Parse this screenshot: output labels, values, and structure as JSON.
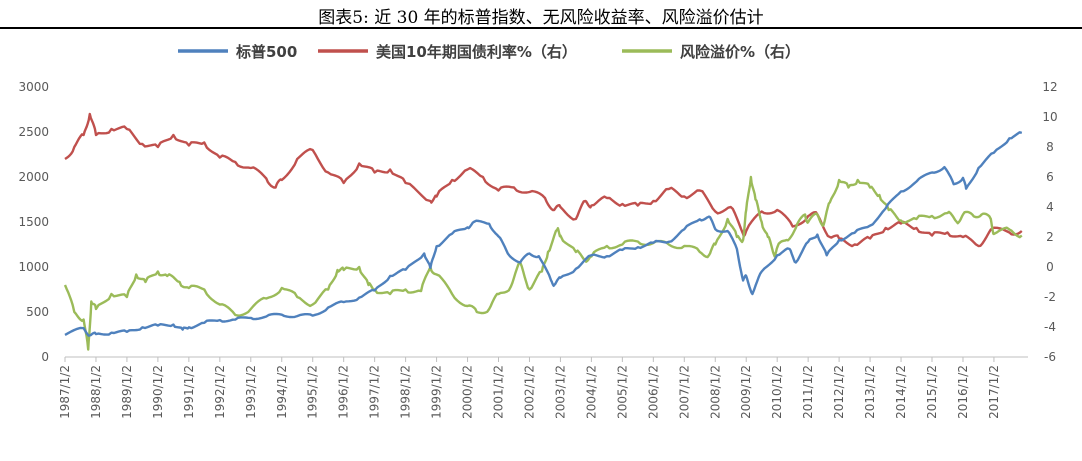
{
  "chart_data": {
    "type": "line",
    "title": "图表5:  近 30 年的标普指数、无风险收益率、风险溢价估计",
    "x_ticks": [
      "1987/1/2",
      "1988/1/2",
      "1989/1/2",
      "1990/1/2",
      "1991/1/2",
      "1992/1/2",
      "1993/1/2",
      "1994/1/2",
      "1995/1/2",
      "1996/1/2",
      "1997/1/2",
      "1998/1/2",
      "1999/1/2",
      "2000/1/2",
      "2001/1/2",
      "2002/1/2",
      "2003/1/2",
      "2004/1/2",
      "2005/1/2",
      "2006/1/2",
      "2007/1/2",
      "2008/1/2",
      "2009/1/2",
      "2010/1/2",
      "2011/1/2",
      "2012/1/2",
      "2013/1/2",
      "2014/1/2",
      "2015/1/2",
      "2016/1/2",
      "2017/1/2"
    ],
    "x_range": [
      1987.0,
      2018.1
    ],
    "y_left": {
      "ylim": [
        0,
        3000
      ],
      "ticks": [
        0,
        500,
        1000,
        1500,
        2000,
        2500,
        3000
      ]
    },
    "y_right": {
      "ylim": [
        -6,
        12
      ],
      "ticks": [
        -6,
        -4,
        -2,
        0,
        2,
        4,
        6,
        8,
        10,
        12
      ]
    },
    "legend_position": "top",
    "gridlines": false,
    "series": [
      {
        "name": "标普500",
        "axis": "left",
        "color": "#4F81BD",
        "points": [
          [
            1987.0,
            245
          ],
          [
            1987.6,
            320
          ],
          [
            1987.8,
            240
          ],
          [
            1988.0,
            255
          ],
          [
            1988.5,
            270
          ],
          [
            1989.0,
            280
          ],
          [
            1989.5,
            330
          ],
          [
            1990.0,
            350
          ],
          [
            1990.5,
            360
          ],
          [
            1990.8,
            305
          ],
          [
            1991.0,
            330
          ],
          [
            1991.5,
            380
          ],
          [
            1992.0,
            410
          ],
          [
            1992.5,
            415
          ],
          [
            1993.0,
            435
          ],
          [
            1993.5,
            450
          ],
          [
            1994.0,
            470
          ],
          [
            1994.5,
            455
          ],
          [
            1995.0,
            460
          ],
          [
            1995.5,
            550
          ],
          [
            1996.0,
            610
          ],
          [
            1996.5,
            660
          ],
          [
            1997.0,
            740
          ],
          [
            1997.5,
            900
          ],
          [
            1998.0,
            970
          ],
          [
            1998.6,
            1150
          ],
          [
            1998.8,
            990
          ],
          [
            1999.0,
            1230
          ],
          [
            1999.5,
            1370
          ],
          [
            2000.0,
            1440
          ],
          [
            2000.2,
            1500
          ],
          [
            2000.7,
            1480
          ],
          [
            2001.0,
            1340
          ],
          [
            2001.3,
            1150
          ],
          [
            2001.7,
            1050
          ],
          [
            2002.0,
            1150
          ],
          [
            2002.3,
            1120
          ],
          [
            2002.7,
            850
          ],
          [
            2002.8,
            800
          ],
          [
            2003.0,
            880
          ],
          [
            2003.5,
            980
          ],
          [
            2004.0,
            1130
          ],
          [
            2004.5,
            1120
          ],
          [
            2005.0,
            1190
          ],
          [
            2005.5,
            1220
          ],
          [
            2006.0,
            1270
          ],
          [
            2006.5,
            1280
          ],
          [
            2007.0,
            1420
          ],
          [
            2007.5,
            1530
          ],
          [
            2007.8,
            1560
          ],
          [
            2008.0,
            1420
          ],
          [
            2008.4,
            1400
          ],
          [
            2008.7,
            1200
          ],
          [
            2008.9,
            850
          ],
          [
            2009.0,
            900
          ],
          [
            2009.2,
            700
          ],
          [
            2009.5,
            950
          ],
          [
            2010.0,
            1130
          ],
          [
            2010.4,
            1200
          ],
          [
            2010.6,
            1050
          ],
          [
            2011.0,
            1280
          ],
          [
            2011.3,
            1360
          ],
          [
            2011.6,
            1130
          ],
          [
            2012.0,
            1300
          ],
          [
            2012.5,
            1380
          ],
          [
            2013.0,
            1460
          ],
          [
            2013.5,
            1650
          ],
          [
            2014.0,
            1840
          ],
          [
            2014.5,
            1950
          ],
          [
            2015.0,
            2050
          ],
          [
            2015.4,
            2110
          ],
          [
            2015.7,
            1920
          ],
          [
            2016.0,
            1990
          ],
          [
            2016.1,
            1870
          ],
          [
            2016.5,
            2100
          ],
          [
            2017.0,
            2270
          ],
          [
            2017.5,
            2430
          ],
          [
            2017.9,
            2490
          ]
        ]
      },
      {
        "name": "美国10年期国债利率%（右）",
        "axis": "right",
        "color": "#C0504D",
        "points": [
          [
            1987.0,
            7.2
          ],
          [
            1987.3,
            8.0
          ],
          [
            1987.6,
            8.8
          ],
          [
            1987.8,
            10.2
          ],
          [
            1988.0,
            8.8
          ],
          [
            1988.5,
            9.2
          ],
          [
            1989.0,
            9.2
          ],
          [
            1989.5,
            8.2
          ],
          [
            1990.0,
            8.0
          ],
          [
            1990.5,
            8.8
          ],
          [
            1991.0,
            8.1
          ],
          [
            1991.5,
            8.3
          ],
          [
            1992.0,
            7.3
          ],
          [
            1992.5,
            7.0
          ],
          [
            1993.0,
            6.6
          ],
          [
            1993.5,
            5.9
          ],
          [
            1993.8,
            5.3
          ],
          [
            1994.0,
            5.8
          ],
          [
            1994.5,
            7.2
          ],
          [
            1995.0,
            7.8
          ],
          [
            1995.5,
            6.3
          ],
          [
            1996.0,
            5.6
          ],
          [
            1996.5,
            6.9
          ],
          [
            1997.0,
            6.3
          ],
          [
            1997.5,
            6.5
          ],
          [
            1998.0,
            5.6
          ],
          [
            1998.8,
            4.4
          ],
          [
            1999.0,
            4.7
          ],
          [
            1999.5,
            5.8
          ],
          [
            2000.0,
            6.5
          ],
          [
            2000.5,
            6.0
          ],
          [
            2001.0,
            5.1
          ],
          [
            2001.5,
            5.3
          ],
          [
            2002.0,
            5.0
          ],
          [
            2002.5,
            4.6
          ],
          [
            2002.8,
            3.8
          ],
          [
            2003.0,
            4.0
          ],
          [
            2003.5,
            3.2
          ],
          [
            2003.8,
            4.4
          ],
          [
            2004.0,
            4.1
          ],
          [
            2004.5,
            4.6
          ],
          [
            2005.0,
            4.2
          ],
          [
            2005.5,
            4.1
          ],
          [
            2006.0,
            4.4
          ],
          [
            2006.5,
            5.2
          ],
          [
            2007.0,
            4.7
          ],
          [
            2007.5,
            5.1
          ],
          [
            2008.0,
            3.7
          ],
          [
            2008.5,
            4.0
          ],
          [
            2008.9,
            2.2
          ],
          [
            2009.0,
            2.4
          ],
          [
            2009.5,
            3.7
          ],
          [
            2010.0,
            3.8
          ],
          [
            2010.5,
            2.7
          ],
          [
            2011.0,
            3.4
          ],
          [
            2011.3,
            3.5
          ],
          [
            2011.7,
            2.0
          ],
          [
            2012.0,
            1.9
          ],
          [
            2012.5,
            1.5
          ],
          [
            2013.0,
            1.9
          ],
          [
            2013.5,
            2.6
          ],
          [
            2014.0,
            2.9
          ],
          [
            2014.5,
            2.6
          ],
          [
            2015.0,
            2.1
          ],
          [
            2015.5,
            2.3
          ],
          [
            2016.0,
            2.0
          ],
          [
            2016.5,
            1.4
          ],
          [
            2016.9,
            2.5
          ],
          [
            2017.5,
            2.3
          ],
          [
            2017.9,
            2.4
          ]
        ]
      },
      {
        "name": "风险溢价%（右）",
        "axis": "right",
        "color": "#9BBB59",
        "points": [
          [
            1987.0,
            -1.2
          ],
          [
            1987.3,
            -3.0
          ],
          [
            1987.6,
            -3.5
          ],
          [
            1987.75,
            -5.5
          ],
          [
            1987.85,
            -2.3
          ],
          [
            1988.0,
            -2.8
          ],
          [
            1988.5,
            -1.8
          ],
          [
            1989.0,
            -2.0
          ],
          [
            1989.3,
            -0.5
          ],
          [
            1989.6,
            -1.0
          ],
          [
            1990.0,
            -0.3
          ],
          [
            1990.3,
            -0.6
          ],
          [
            1990.7,
            -1.0
          ],
          [
            1991.0,
            -1.4
          ],
          [
            1991.5,
            -1.5
          ],
          [
            1992.0,
            -2.5
          ],
          [
            1992.5,
            -3.2
          ],
          [
            1993.0,
            -2.8
          ],
          [
            1993.5,
            -2.1
          ],
          [
            1994.0,
            -1.4
          ],
          [
            1994.5,
            -2.0
          ],
          [
            1995.0,
            -2.5
          ],
          [
            1995.5,
            -1.5
          ],
          [
            1995.8,
            -0.2
          ],
          [
            1996.0,
            -0.2
          ],
          [
            1996.5,
            0.0
          ],
          [
            1996.8,
            -1.2
          ],
          [
            1997.0,
            -1.5
          ],
          [
            1997.5,
            -1.8
          ],
          [
            1998.0,
            -1.5
          ],
          [
            1998.5,
            -1.6
          ],
          [
            1998.8,
            0.0
          ],
          [
            1999.0,
            -0.5
          ],
          [
            1999.5,
            -1.8
          ],
          [
            2000.0,
            -2.6
          ],
          [
            2000.3,
            -3.0
          ],
          [
            2000.7,
            -2.8
          ],
          [
            2001.0,
            -1.8
          ],
          [
            2001.4,
            -1.3
          ],
          [
            2001.7,
            0.3
          ],
          [
            2002.0,
            -1.5
          ],
          [
            2002.4,
            -0.3
          ],
          [
            2002.6,
            1.0
          ],
          [
            2002.9,
            2.5
          ],
          [
            2003.0,
            2.1
          ],
          [
            2003.5,
            1.0
          ],
          [
            2003.8,
            0.5
          ],
          [
            2004.0,
            0.7
          ],
          [
            2004.5,
            1.4
          ],
          [
            2005.0,
            1.5
          ],
          [
            2005.5,
            1.7
          ],
          [
            2006.0,
            1.6
          ],
          [
            2006.5,
            1.5
          ],
          [
            2007.0,
            1.4
          ],
          [
            2007.5,
            1.0
          ],
          [
            2007.8,
            0.8
          ],
          [
            2008.0,
            1.5
          ],
          [
            2008.4,
            3.2
          ],
          [
            2008.7,
            2.0
          ],
          [
            2008.9,
            1.8
          ],
          [
            2009.0,
            3.8
          ],
          [
            2009.15,
            6.0
          ],
          [
            2009.3,
            4.5
          ],
          [
            2009.5,
            3.0
          ],
          [
            2009.7,
            2.0
          ],
          [
            2009.9,
            0.8
          ],
          [
            2010.0,
            1.3
          ],
          [
            2010.3,
            1.8
          ],
          [
            2010.6,
            2.6
          ],
          [
            2010.9,
            3.5
          ],
          [
            2011.0,
            3.0
          ],
          [
            2011.3,
            3.5
          ],
          [
            2011.5,
            2.8
          ],
          [
            2011.7,
            4.3
          ],
          [
            2012.0,
            5.8
          ],
          [
            2012.3,
            5.3
          ],
          [
            2012.6,
            5.8
          ],
          [
            2013.0,
            5.3
          ],
          [
            2013.3,
            4.8
          ],
          [
            2013.6,
            3.8
          ],
          [
            2014.0,
            3.1
          ],
          [
            2014.5,
            3.2
          ],
          [
            2015.0,
            3.4
          ],
          [
            2015.5,
            3.6
          ],
          [
            2015.8,
            3.0
          ],
          [
            2016.0,
            3.5
          ],
          [
            2016.3,
            3.5
          ],
          [
            2016.6,
            3.5
          ],
          [
            2016.9,
            3.2
          ],
          [
            2017.0,
            2.2
          ],
          [
            2017.5,
            2.5
          ],
          [
            2017.9,
            2.1
          ]
        ]
      }
    ]
  }
}
